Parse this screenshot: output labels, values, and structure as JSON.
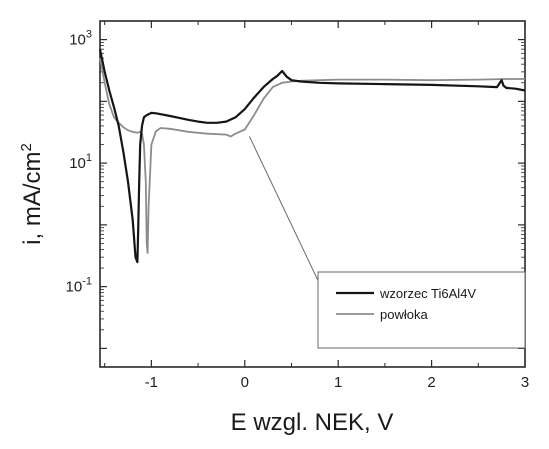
{
  "chart_data": {
    "type": "line",
    "xlabel": "E wzgl. NEK, V",
    "ylabel": "i, mA/cm",
    "ylabel_superscript": "2",
    "y_scale": "log",
    "xlim": [
      -1.55,
      3.0
    ],
    "ylim": [
      0.005,
      2000
    ],
    "x_ticks": [
      {
        "value": -1,
        "label": "-1"
      },
      {
        "value": 0,
        "label": "0"
      },
      {
        "value": 1,
        "label": "1"
      },
      {
        "value": 2,
        "label": "2"
      },
      {
        "value": 3,
        "label": "3"
      }
    ],
    "y_ticks": [
      {
        "value": 1000,
        "base": "10",
        "exp": "3"
      },
      {
        "value": 10,
        "base": "10",
        "exp": "1"
      },
      {
        "value": 0.1,
        "base": "10",
        "exp": "-1"
      }
    ],
    "legend_position": "bottom-right",
    "series": [
      {
        "name": "wzorzec Ti6Al4V",
        "color": "#151515",
        "x": [
          -1.55,
          -1.5,
          -1.45,
          -1.4,
          -1.35,
          -1.3,
          -1.25,
          -1.2,
          -1.17,
          -1.15,
          -1.14,
          -1.13,
          -1.12,
          -1.1,
          -1.08,
          -1.05,
          -1.0,
          -0.95,
          -0.9,
          -0.8,
          -0.7,
          -0.6,
          -0.5,
          -0.4,
          -0.3,
          -0.2,
          -0.1,
          0.0,
          0.1,
          0.2,
          0.3,
          0.35,
          0.4,
          0.45,
          0.5,
          0.6,
          0.8,
          1.0,
          1.5,
          2.0,
          2.5,
          2.7,
          2.75,
          2.77,
          2.8,
          2.9,
          3.0
        ],
        "values": [
          700,
          300,
          150,
          80,
          40,
          15,
          5,
          1.2,
          0.3,
          0.25,
          1.0,
          5,
          20,
          40,
          55,
          60,
          65,
          64,
          62,
          58,
          54,
          50,
          47,
          45,
          45,
          47,
          55,
          75,
          115,
          170,
          230,
          260,
          310,
          250,
          220,
          210,
          200,
          195,
          190,
          185,
          175,
          170,
          220,
          180,
          165,
          160,
          150
        ]
      },
      {
        "name": "powłoka",
        "color": "#8c8c8c",
        "x": [
          -1.55,
          -1.5,
          -1.45,
          -1.4,
          -1.35,
          -1.3,
          -1.25,
          -1.2,
          -1.15,
          -1.12,
          -1.1,
          -1.08,
          -1.06,
          -1.05,
          -1.04,
          -1.03,
          -1.0,
          -0.95,
          -0.9,
          -0.8,
          -0.6,
          -0.4,
          -0.2,
          -0.15,
          -0.1,
          0.0,
          0.1,
          0.2,
          0.3,
          0.4,
          0.5,
          0.6,
          0.8,
          1.0,
          1.5,
          2.0,
          2.5,
          2.8,
          3.0
        ],
        "values": [
          500,
          200,
          90,
          55,
          45,
          38,
          34,
          32,
          31,
          32,
          30,
          20,
          5,
          0.5,
          0.35,
          2,
          20,
          33,
          37,
          36,
          32,
          30,
          29,
          27,
          30,
          35,
          60,
          110,
          170,
          200,
          210,
          215,
          220,
          225,
          225,
          220,
          225,
          230,
          230
        ]
      }
    ]
  }
}
